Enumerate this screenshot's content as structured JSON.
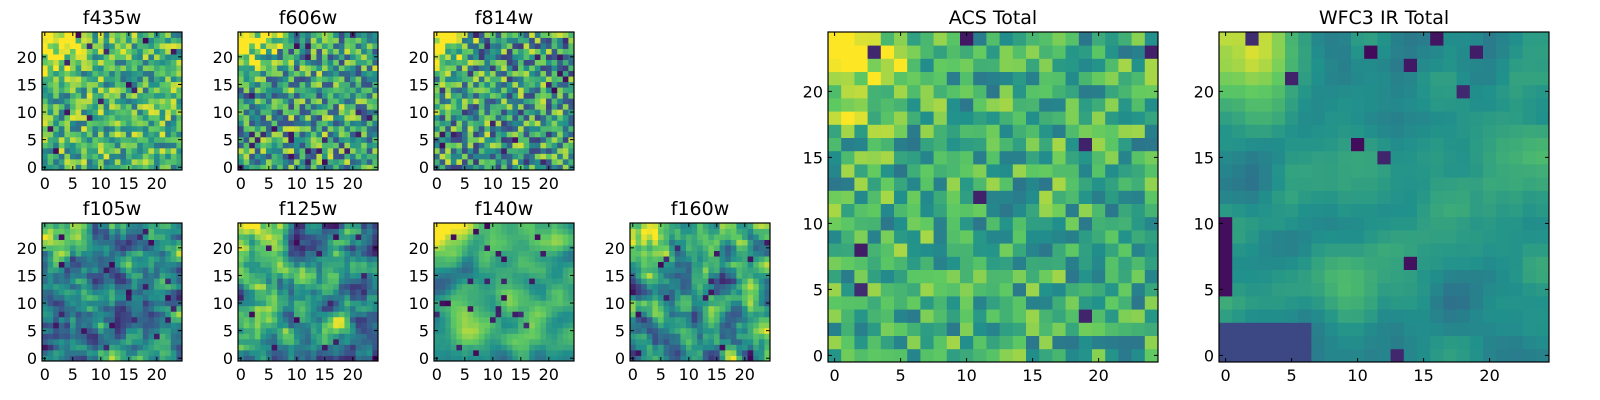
{
  "chart_data": {
    "type": "heatmap",
    "colormap": "viridis",
    "colormap_stops": [
      "#440154",
      "#3b528b",
      "#21918c",
      "#5ec962",
      "#fde725"
    ],
    "grid_size": 25,
    "grid": "off",
    "panels": [
      {
        "id": "f435w",
        "title": "f435w",
        "xlim": [
          0,
          24
        ],
        "ylim": [
          0,
          24
        ],
        "xticks": [
          0,
          5,
          10,
          15,
          20
        ],
        "yticks": [
          0,
          5,
          10,
          15,
          20
        ],
        "brightness": "0.65 average with fine-scale noise, slightly higher in top-left"
      },
      {
        "id": "f606w",
        "title": "f606w",
        "xlim": [
          0,
          24
        ],
        "ylim": [
          0,
          24
        ],
        "xticks": [
          0,
          5,
          10,
          15,
          20
        ],
        "yticks": [
          0,
          5,
          10,
          15,
          20
        ],
        "brightness": "0.58 average with fine-scale noise, bright top-left corner"
      },
      {
        "id": "f814w",
        "title": "f814w",
        "xlim": [
          0,
          24
        ],
        "ylim": [
          0,
          24
        ],
        "xticks": [
          0,
          5,
          10,
          15,
          20
        ],
        "yticks": [
          0,
          5,
          10,
          15,
          20
        ],
        "brightness": "0.55 average with fine-scale noise, bright top-left corner"
      },
      {
        "id": "f105w",
        "title": "f105w",
        "xlim": [
          0,
          24
        ],
        "ylim": [
          0,
          24
        ],
        "xticks": [
          0,
          5,
          10,
          15,
          20
        ],
        "yticks": [
          0,
          5,
          10,
          15,
          20
        ],
        "brightness": "0.42 average, smoother texture, bright top-left corner"
      },
      {
        "id": "f125w",
        "title": "f125w",
        "xlim": [
          0,
          24
        ],
        "ylim": [
          0,
          24
        ],
        "xticks": [
          0,
          5,
          10,
          15,
          20
        ],
        "yticks": [
          0,
          5,
          10,
          15,
          20
        ],
        "brightness": "0.52 average, smooth texture, bright top-left corner"
      },
      {
        "id": "f140w",
        "title": "f140w",
        "xlim": [
          0,
          24
        ],
        "ylim": [
          0,
          24
        ],
        "xticks": [
          0,
          5,
          10,
          15,
          20
        ],
        "yticks": [
          0,
          5,
          10,
          15,
          20
        ],
        "brightness": "0.62 average, smooth texture, bright top-left corner"
      },
      {
        "id": "f160w",
        "title": "f160w",
        "xlim": [
          0,
          24
        ],
        "ylim": [
          0,
          24
        ],
        "xticks": [
          0,
          5,
          10,
          15,
          20
        ],
        "yticks": [
          0,
          5,
          10,
          15,
          20
        ],
        "brightness": "0.55 average, smooth texture, bright top-left corner"
      },
      {
        "id": "acs-total",
        "title": "ACS Total",
        "xlim": [
          0,
          24
        ],
        "ylim": [
          0,
          24
        ],
        "xticks": [
          0,
          5,
          10,
          15,
          20
        ],
        "yticks": [
          0,
          5,
          10,
          15,
          20
        ],
        "brightness": "0.62 average, green-yellow, bright top-left corner, a few dark pixels"
      },
      {
        "id": "wfc3-ir-total",
        "title": "WFC3 IR Total",
        "xlim": [
          0,
          24
        ],
        "ylim": [
          0,
          24
        ],
        "xticks": [
          0,
          5,
          10,
          15,
          20
        ],
        "yticks": [
          0,
          5,
          10,
          15,
          20
        ],
        "brightness": "0.48 average, smooth teal-green, bright top-left corner, dark left edge near y=5-10 and bottom-left"
      }
    ]
  }
}
